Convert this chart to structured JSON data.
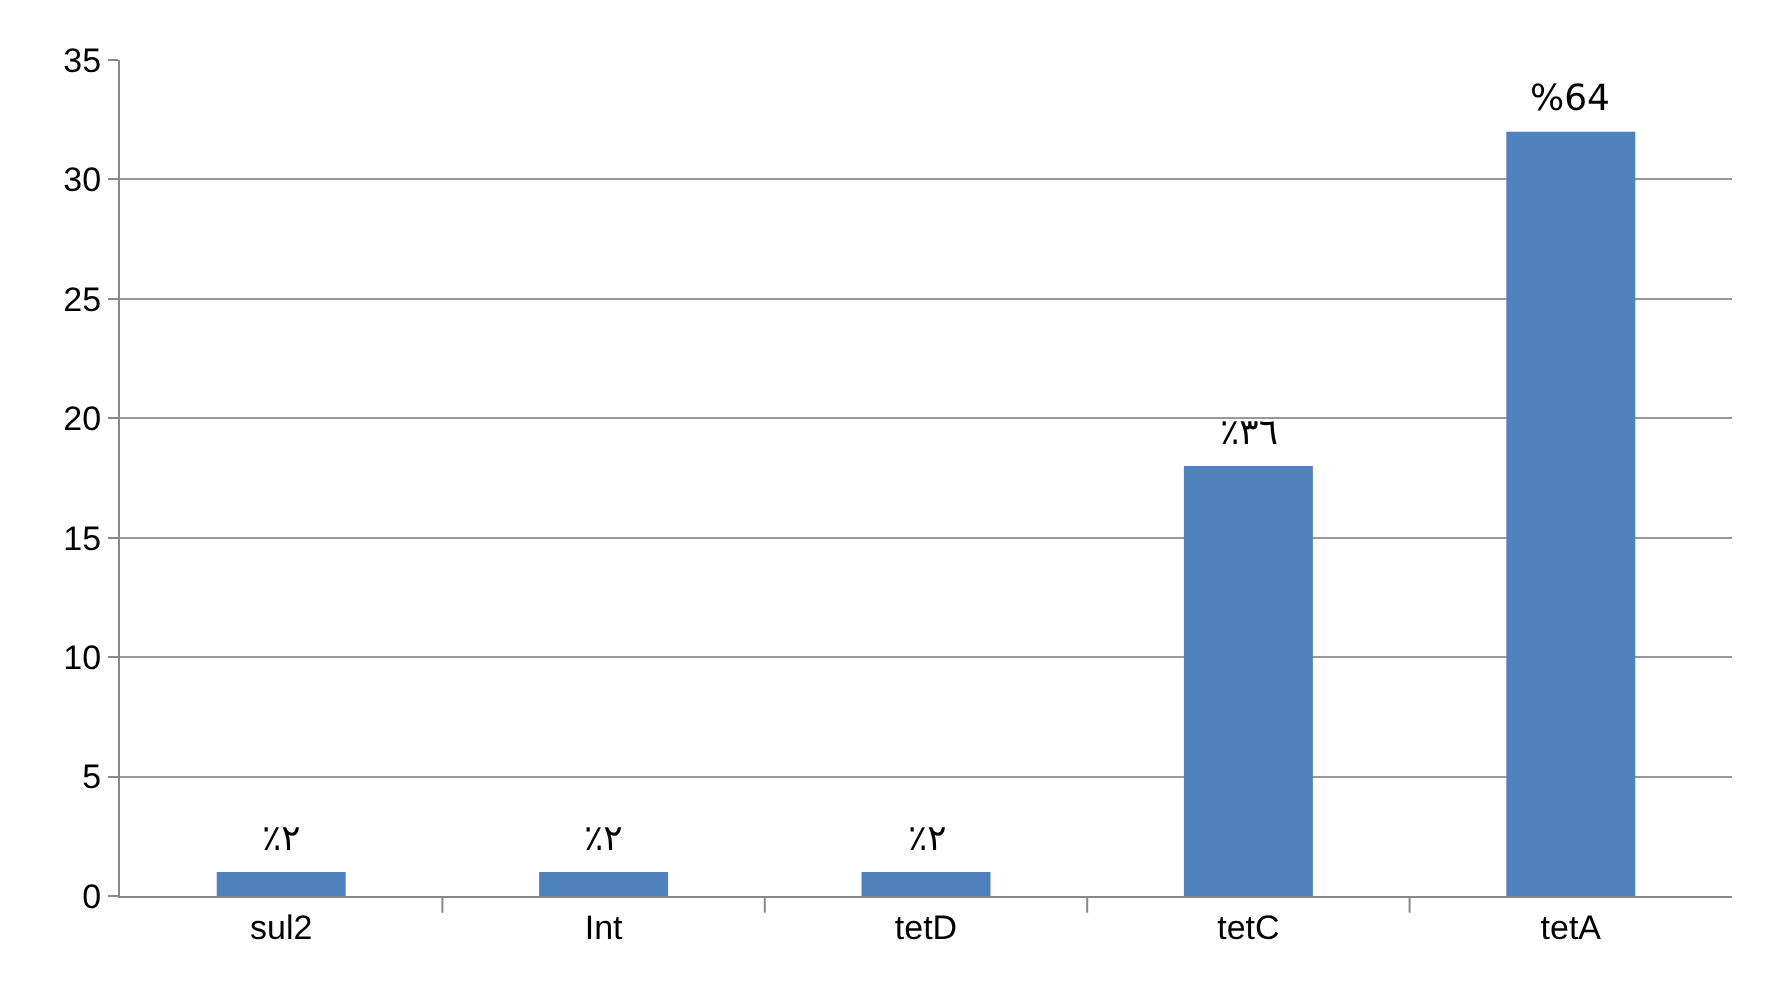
{
  "chart_data": {
    "type": "bar",
    "categories": [
      "sul2",
      "Int",
      "tetD",
      "tetC",
      "tetA"
    ],
    "values": [
      1,
      1,
      1,
      18,
      32
    ],
    "annotations": [
      {
        "text": "٪٢",
        "x": "sul2",
        "y": 1
      },
      {
        "text": "٪٢",
        "x": "Int",
        "y": 1
      },
      {
        "text": "٪٢",
        "x": "tetD",
        "y": 1
      },
      {
        "text": "٪٣٦",
        "x": "tetC",
        "y": 18
      },
      {
        "text": "%64",
        "x": "tetA",
        "y": 32
      }
    ],
    "color": "#4f81bd",
    "ylim": [
      0,
      35
    ],
    "yticks": [
      0,
      5,
      10,
      15,
      20,
      25,
      30,
      35
    ],
    "grid": "y"
  }
}
